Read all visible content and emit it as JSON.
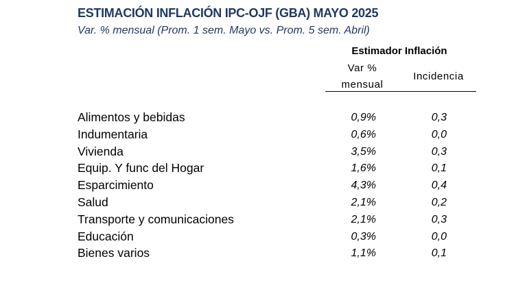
{
  "title": "ESTIMACIÓN INFLACIÓN IPC-OJF (GBA) MAYO 2025",
  "subtitle": "Var. % mensual (Prom. 1 sem. Mayo vs. Prom. 5 sem. Abril)",
  "table": {
    "group_header": "Estimador Inflación",
    "col_var_line1": "Var %",
    "col_var_line2": "mensual",
    "col_inc": "Incidencia",
    "rows": [
      {
        "category": "Alimentos y bebidas",
        "var": "0,9%",
        "inc": "0,3"
      },
      {
        "category": "Indumentaria",
        "var": "0,6%",
        "inc": "0,0"
      },
      {
        "category": "Vivienda",
        "var": "3,5%",
        "inc": "0,3"
      },
      {
        "category": "Equip. Y func del Hogar",
        "var": "1,6%",
        "inc": "0,1"
      },
      {
        "category": "Esparcimiento",
        "var": "4,3%",
        "inc": "0,4"
      },
      {
        "category": "Salud",
        "var": "2,1%",
        "inc": "0,2"
      },
      {
        "category": "Transporte y comunicaciones",
        "var": "2,1%",
        "inc": "0,3"
      },
      {
        "category": "Educación",
        "var": "0,3%",
        "inc": "0,0"
      },
      {
        "category": "Bienes varios",
        "var": "1,1%",
        "inc": "0,1"
      }
    ]
  }
}
